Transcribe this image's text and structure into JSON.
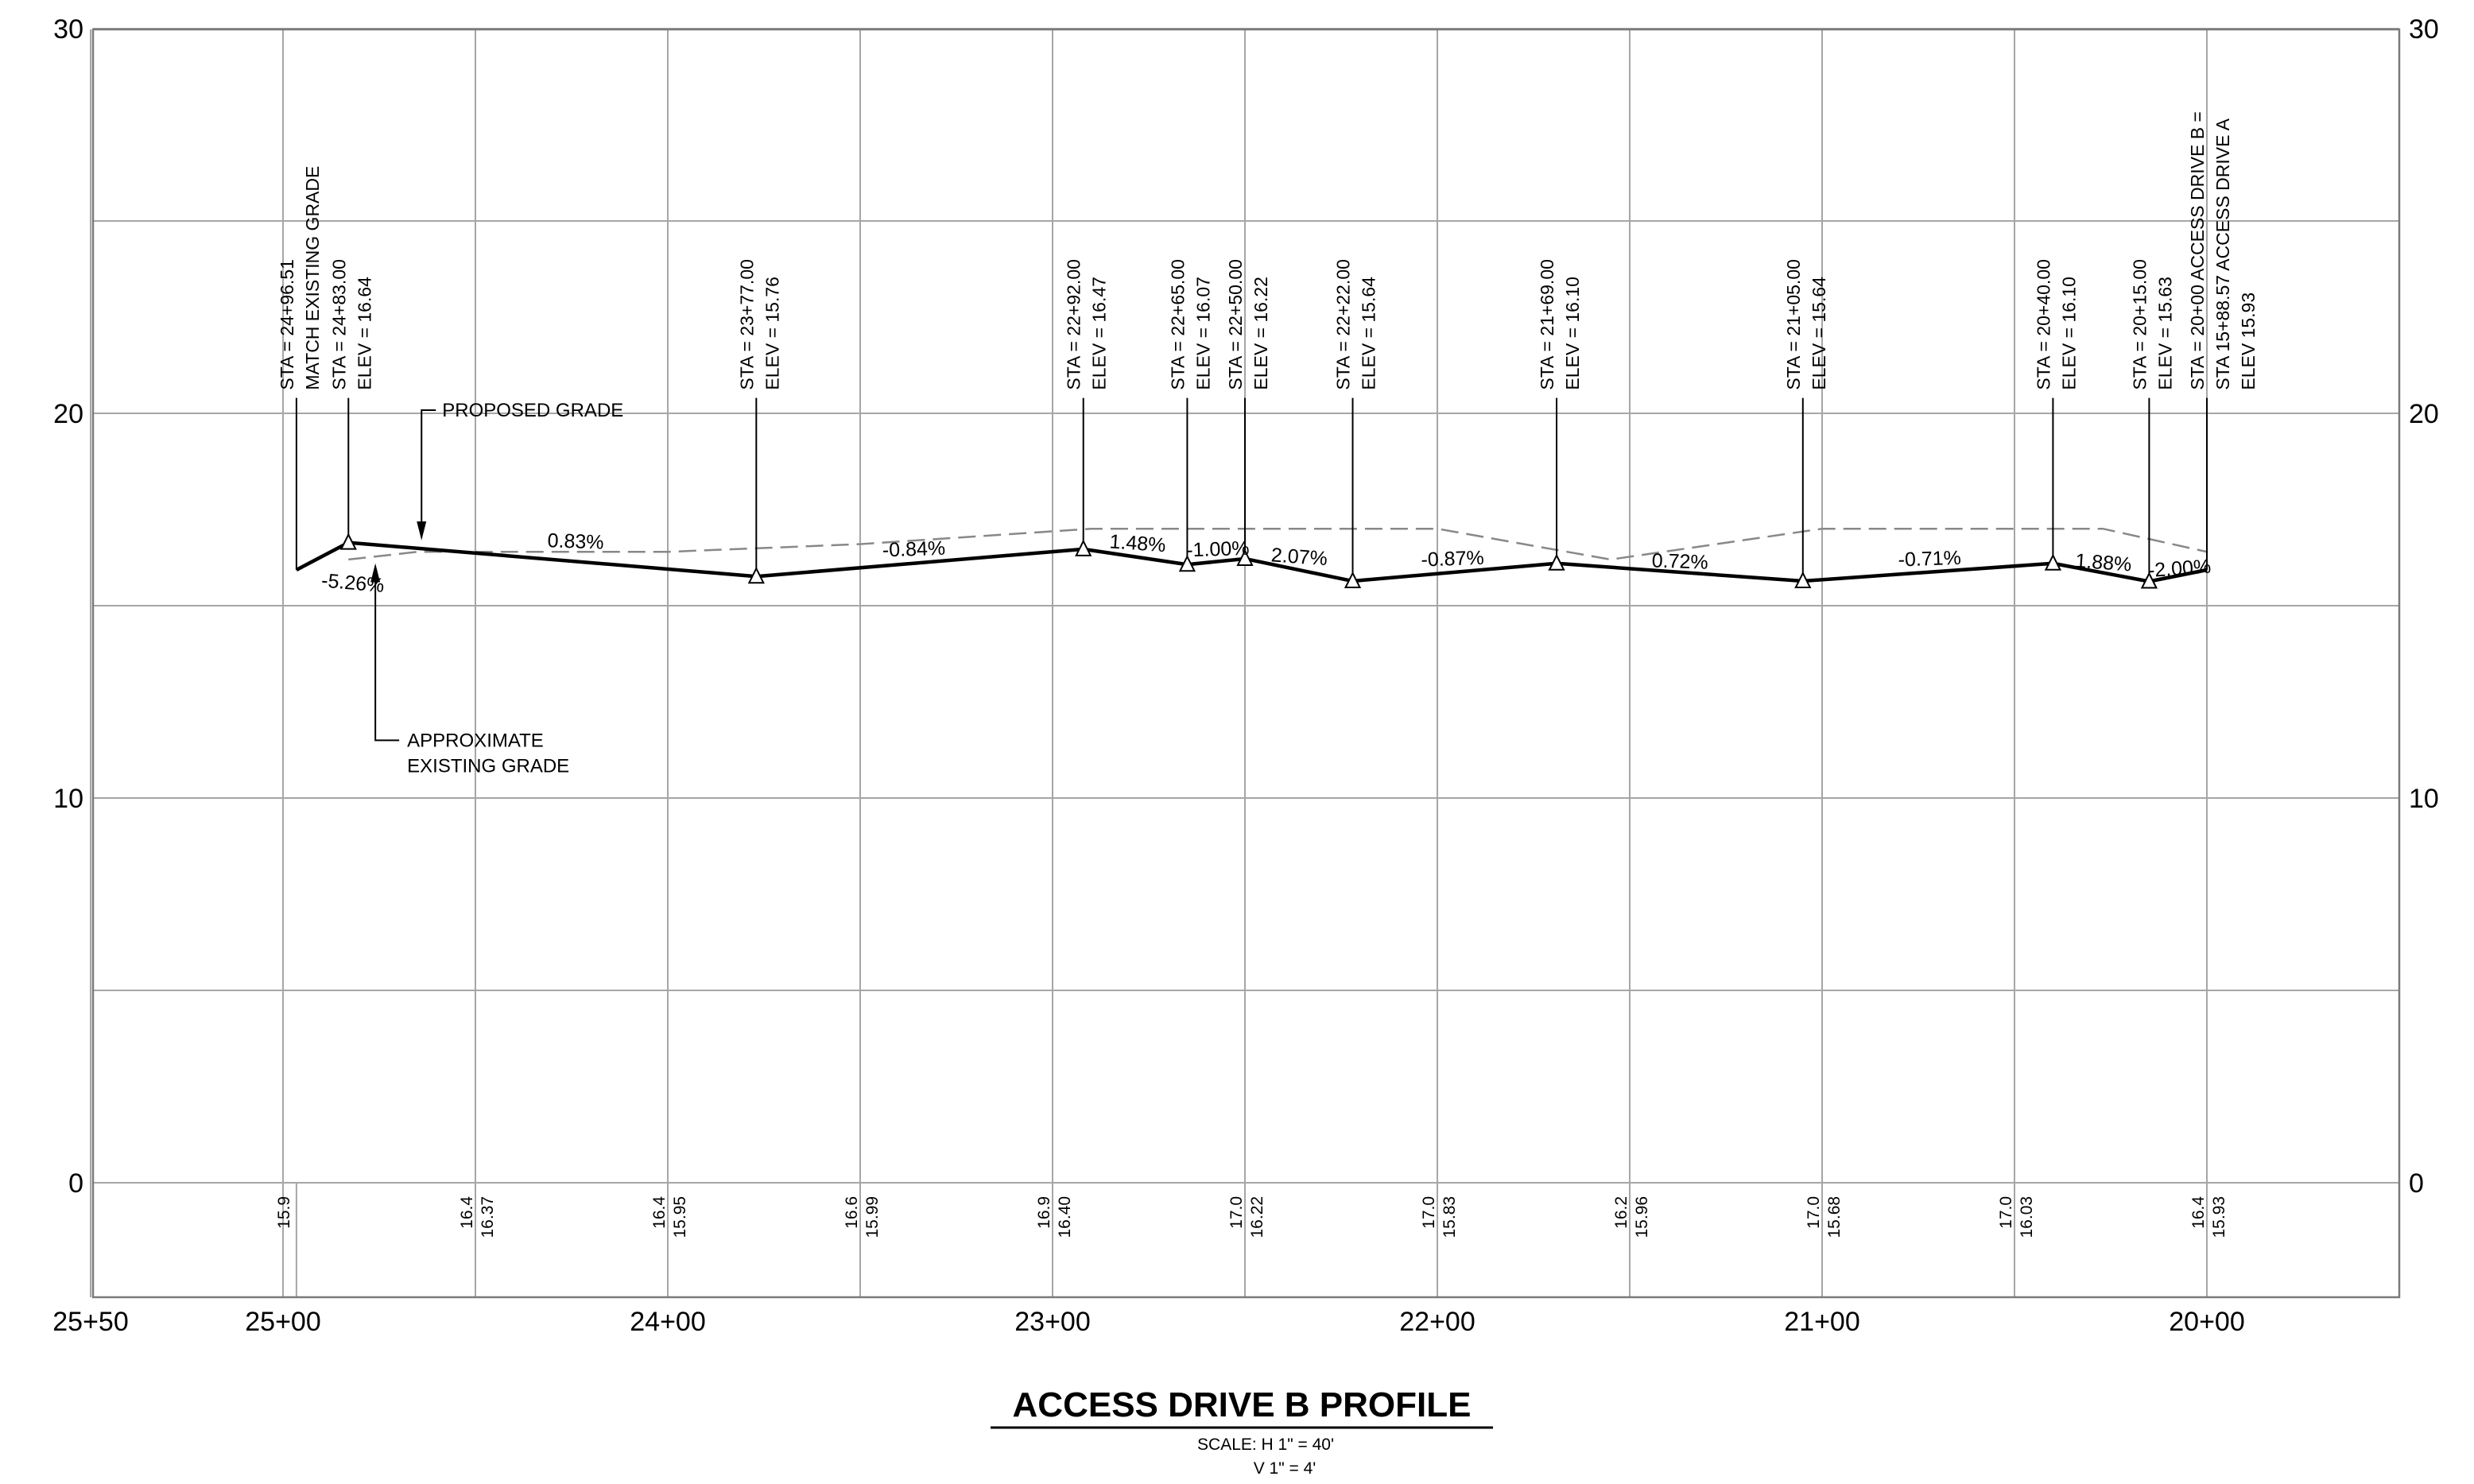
{
  "drawing": {
    "title": "ACCESS DRIVE B PROFILE",
    "scale_lines": [
      "SCALE: H 1\" = 40'",
      "V 1\" = 4'"
    ]
  },
  "axes": {
    "elevation_ticks": [
      30,
      20,
      10,
      0
    ],
    "elevation_range": [
      -3,
      30
    ],
    "station_range": [
      2040,
      2690
    ]
  },
  "station_labels": [
    {
      "text": "25+50",
      "sta": 2550
    },
    {
      "text": "25+00",
      "sta": 2500
    },
    {
      "text": "24+00",
      "sta": 2400
    },
    {
      "text": "23+00",
      "sta": 2300
    },
    {
      "text": "22+00",
      "sta": 2200
    },
    {
      "text": "21+00",
      "sta": 2100
    },
    {
      "text": "20+00",
      "sta": 2000
    }
  ],
  "proposed_grade": [
    {
      "sta": 2496.51,
      "elev": 15.93
    },
    {
      "sta": 2483.0,
      "elev": 16.64
    },
    {
      "sta": 2377.0,
      "elev": 15.76
    },
    {
      "sta": 2292.0,
      "elev": 16.47
    },
    {
      "sta": 2265.0,
      "elev": 16.07
    },
    {
      "sta": 2250.0,
      "elev": 16.22
    },
    {
      "sta": 2222.0,
      "elev": 15.64
    },
    {
      "sta": 2169.0,
      "elev": 16.1
    },
    {
      "sta": 2105.0,
      "elev": 15.64
    },
    {
      "sta": 2040.0,
      "elev": 16.1
    },
    {
      "sta": 2015.0,
      "elev": 15.63
    },
    {
      "sta": 2000.0,
      "elev": 15.93
    }
  ],
  "existing_grade": [
    {
      "sta": 2483.0,
      "elev": 16.2
    },
    {
      "sta": 2465.0,
      "elev": 16.4
    },
    {
      "sta": 2400.0,
      "elev": 16.4
    },
    {
      "sta": 2350.0,
      "elev": 16.6
    },
    {
      "sta": 2290.0,
      "elev": 17.0
    },
    {
      "sta": 2200.0,
      "elev": 17.0
    },
    {
      "sta": 2155.0,
      "elev": 16.2
    },
    {
      "sta": 2100.0,
      "elev": 17.0
    },
    {
      "sta": 2027.0,
      "elev": 17.0
    },
    {
      "sta": 2000.0,
      "elev": 16.4
    }
  ],
  "pvi_callouts": [
    {
      "sta": 2496.51,
      "elev": 15.93,
      "leader_top": 20.4,
      "marker": false,
      "lines": [
        "STA = 24+96.51",
        "MATCH EXISTING GRADE"
      ]
    },
    {
      "sta": 2483.0,
      "elev": 16.64,
      "leader_top": 20.4,
      "marker": true,
      "lines": [
        "STA = 24+83.00",
        "ELEV = 16.64"
      ]
    },
    {
      "sta": 2377.0,
      "elev": 15.76,
      "leader_top": 20.4,
      "marker": true,
      "lines": [
        "STA = 23+77.00",
        "ELEV = 15.76"
      ]
    },
    {
      "sta": 2292.0,
      "elev": 16.47,
      "leader_top": 20.4,
      "marker": true,
      "lines": [
        "STA = 22+92.00",
        "ELEV = 16.47"
      ]
    },
    {
      "sta": 2265.0,
      "elev": 16.07,
      "leader_top": 20.4,
      "marker": true,
      "lines": [
        "STA = 22+65.00",
        "ELEV = 16.07"
      ]
    },
    {
      "sta": 2250.0,
      "elev": 16.22,
      "leader_top": 20.4,
      "marker": true,
      "lines": [
        "STA = 22+50.00",
        "ELEV = 16.22"
      ]
    },
    {
      "sta": 2222.0,
      "elev": 15.64,
      "leader_top": 20.4,
      "marker": true,
      "lines": [
        "STA = 22+22.00",
        "ELEV = 15.64"
      ]
    },
    {
      "sta": 2169.0,
      "elev": 16.1,
      "leader_top": 20.4,
      "marker": true,
      "lines": [
        "STA = 21+69.00",
        "ELEV = 16.10"
      ]
    },
    {
      "sta": 2105.0,
      "elev": 15.64,
      "leader_top": 20.4,
      "marker": true,
      "lines": [
        "STA = 21+05.00",
        "ELEV = 15.64"
      ]
    },
    {
      "sta": 2040.0,
      "elev": 16.1,
      "leader_top": 20.4,
      "marker": true,
      "lines": [
        "STA = 20+40.00",
        "ELEV = 16.10"
      ]
    },
    {
      "sta": 2015.0,
      "elev": 15.63,
      "leader_top": 20.4,
      "marker": true,
      "lines": [
        "STA = 20+15.00",
        "ELEV = 15.63"
      ]
    },
    {
      "sta": 2000.0,
      "elev": 15.93,
      "leader_top": 20.4,
      "marker": false,
      "lines": [
        "STA = 20+00 ACCESS DRIVE B =",
        "STA 15+88.57 ACCESS DRIVE A",
        "ELEV 15.93"
      ]
    }
  ],
  "grade_labels": [
    {
      "text": "-5.26%",
      "sta": 2482,
      "elev": 15.42,
      "angle": 5
    },
    {
      "text": "0.83%",
      "sta": 2424,
      "elev": 16.5,
      "angle": 2
    },
    {
      "text": "-0.84%",
      "sta": 2336,
      "elev": 16.3,
      "angle": -2
    },
    {
      "text": "1.48%",
      "sta": 2278,
      "elev": 16.45,
      "angle": 4
    },
    {
      "text": "-1.00%",
      "sta": 2257,
      "elev": 16.3,
      "angle": -2
    },
    {
      "text": "2.07%",
      "sta": 2236,
      "elev": 16.1,
      "angle": 4
    },
    {
      "text": "-0.87%",
      "sta": 2196,
      "elev": 16.05,
      "angle": -2
    },
    {
      "text": "0.72%",
      "sta": 2137,
      "elev": 15.98,
      "angle": 2
    },
    {
      "text": "-0.71%",
      "sta": 2072,
      "elev": 16.05,
      "angle": -2
    },
    {
      "text": "1.88%",
      "sta": 2027,
      "elev": 15.95,
      "angle": 4
    },
    {
      "text": "-2.00%",
      "sta": 2007,
      "elev": 15.8,
      "angle": -4
    }
  ],
  "notes": {
    "proposed": {
      "text": "PROPOSED GRADE",
      "sta": 2470,
      "elev": 20.0
    },
    "existing": {
      "lines": [
        "APPROXIMATE",
        "EXISTING GRADE"
      ],
      "sta": 2470,
      "elev": 11.5
    }
  },
  "bottom_elevations": [
    {
      "sta": 2500,
      "lines": [
        "15.9"
      ]
    },
    {
      "sta": 2450,
      "lines": [
        "16.4",
        "16.37"
      ]
    },
    {
      "sta": 2400,
      "lines": [
        "16.4",
        "15.95"
      ]
    },
    {
      "sta": 2350,
      "lines": [
        "16.6",
        "15.99"
      ]
    },
    {
      "sta": 2300,
      "lines": [
        "16.9",
        "16.40"
      ]
    },
    {
      "sta": 2250,
      "lines": [
        "17.0",
        "16.22"
      ]
    },
    {
      "sta": 2200,
      "lines": [
        "17.0",
        "15.83"
      ]
    },
    {
      "sta": 2150,
      "lines": [
        "16.2",
        "15.96"
      ]
    },
    {
      "sta": 2100,
      "lines": [
        "17.0",
        "15.68"
      ]
    },
    {
      "sta": 2050,
      "lines": [
        "17.0",
        "16.03"
      ]
    },
    {
      "sta": 2000,
      "lines": [
        "16.4",
        "15.93"
      ]
    }
  ],
  "colors": {
    "proposed": "#000000",
    "existing": "#888888",
    "grid": "#a6a6a6",
    "frame": "#7a7a7a"
  }
}
